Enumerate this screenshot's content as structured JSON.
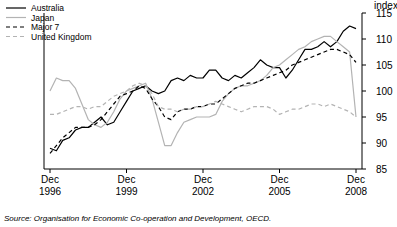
{
  "chart_data": {
    "type": "line",
    "y_label": "index",
    "source": "Source: Organisation for Economic Co-operation and Development, OECD.",
    "categories": [
      "Dec 1996",
      null,
      null,
      null,
      null,
      null,
      null,
      null,
      null,
      null,
      null,
      null,
      "Dec 1999",
      null,
      null,
      null,
      null,
      null,
      null,
      null,
      null,
      null,
      null,
      null,
      "Dec 2002",
      null,
      null,
      null,
      null,
      null,
      null,
      null,
      null,
      null,
      null,
      null,
      "Dec 2005",
      null,
      null,
      null,
      null,
      null,
      null,
      null,
      null,
      null,
      null,
      null,
      "Dec 2008"
    ],
    "series": [
      {
        "name": "Australia",
        "color": "#000000",
        "line_style": "solid",
        "values": [
          89,
          88.5,
          90.5,
          91,
          92.5,
          93,
          93,
          94,
          95,
          93.5,
          94,
          96,
          98,
          100,
          100.5,
          101,
          100,
          99.5,
          100,
          102,
          102.5,
          102,
          103,
          102.5,
          102.5,
          104,
          104,
          102.5,
          102,
          103,
          102.5,
          103.5,
          104.5,
          106,
          105,
          104.5,
          104.5,
          102.5,
          104,
          106,
          108,
          108,
          108.5,
          109.5,
          108.5,
          109.5,
          111.5,
          112.5,
          112
        ]
      },
      {
        "name": "Japan",
        "color": "#b3b3b3",
        "line_style": "solid",
        "values": [
          100,
          102.5,
          102,
          102,
          100.5,
          97.5,
          94.5,
          93.5,
          93,
          94,
          96,
          98.5,
          100,
          100.5,
          101,
          101.5,
          98.5,
          94,
          89.5,
          89.5,
          92,
          94,
          94.5,
          95,
          95,
          95,
          95.5,
          98,
          99.5,
          100.5,
          101,
          101,
          101.5,
          102,
          103,
          104.5,
          105,
          106,
          107,
          108,
          108.5,
          109.5,
          110,
          110.5,
          110.5,
          109.5,
          108.5,
          107.5,
          95
        ]
      },
      {
        "name": "Major 7",
        "color": "#000000",
        "line_style": "dashed",
        "values": [
          88,
          89.5,
          91,
          92,
          93,
          93,
          93,
          93.5,
          94.5,
          96,
          97.5,
          99,
          99.5,
          100,
          101,
          100.5,
          98.5,
          97,
          95,
          94.5,
          96,
          96.5,
          96.5,
          97,
          97,
          97.5,
          97.5,
          98.5,
          99.5,
          100.5,
          101,
          101.5,
          101.5,
          102,
          102.5,
          103,
          103.5,
          104,
          105,
          105.5,
          106,
          106.5,
          107,
          107.5,
          108,
          108,
          107.5,
          107,
          105.5
        ]
      },
      {
        "name": "United Kingdom",
        "color": "#b3b3b3",
        "line_style": "dashed",
        "values": [
          95.5,
          95.5,
          96,
          96.5,
          97,
          97,
          96.5,
          97,
          97,
          98,
          99,
          99.5,
          100,
          101,
          101.5,
          101,
          99.5,
          97,
          96.5,
          96.5,
          96,
          96.5,
          96.5,
          97,
          97,
          97.5,
          98,
          97.5,
          97,
          96.5,
          96,
          96.5,
          97,
          97,
          97,
          96.5,
          95.5,
          96,
          96.5,
          96.5,
          97,
          97.5,
          97.5,
          97,
          97.5,
          97,
          96.5,
          96,
          95
        ]
      }
    ],
    "ylim": [
      85,
      115
    ],
    "yticks": [
      85,
      90,
      95,
      100,
      105,
      110,
      115
    ],
    "grid": false,
    "legend": "top left"
  }
}
